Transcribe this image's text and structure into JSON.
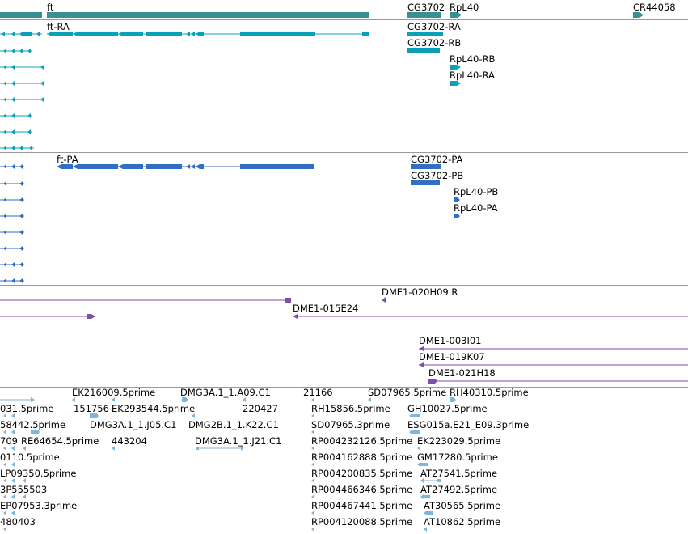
{
  "colors": {
    "gene": "#3a8f93",
    "transcript_a": "#0aa0b8",
    "transcript_b": "#2f6fc4",
    "clone": "#7c4fa8",
    "est": "#7fb6dc",
    "separator": "#9a9a9a"
  },
  "gene_track": {
    "labels": [
      "ft",
      "CG3702",
      "RpL40",
      "CR44058"
    ]
  },
  "transcript_track_a": {
    "labels": [
      "ft-RA",
      "CG3702-RA",
      "CG3702-RB",
      "RpL40-RB",
      "RpL40-RA"
    ]
  },
  "transcript_track_b": {
    "labels": [
      "ft-PA",
      "CG3702-PA",
      "CG3702-PB",
      "RpL40-PB",
      "RpL40-PA"
    ]
  },
  "clone_track_a": {
    "labels": [
      "DME1-020H09.R",
      "DME1-015E24"
    ]
  },
  "clone_track_b": {
    "labels": [
      "DME1-003I01",
      "DME1-019K07",
      "DME1-021H18"
    ]
  },
  "est_track": {
    "labels": [
      "EK216009.5prime",
      "DMG3A.1_1.A09.C1",
      "21166",
      "SD07965.5prime",
      "RH40310.5prime",
      "031.5prime",
      "151756",
      "EK293544.5prime",
      "220427",
      "RH15856.5prime",
      "GH10027.5prime",
      "58442.5prime",
      "DMG3A.1_1.J05.C1",
      "DMG2B.1_1.K22.C1",
      "SD07965.3prime",
      "ESG015a.E21_E09.3prime",
      "709",
      "RE64654.5prime",
      "443204",
      "DMG3A.1_1.J21.C1",
      "RP004232126.5prime",
      "EK223029.5prime",
      "0110.5prime",
      "RP004162888.5prime",
      "GM17280.5prime",
      "LP09350.5prime",
      "RP004200835.5prime",
      "AT27541.5prime",
      "3P555503",
      "RP004466346.5prime",
      "AT27492.5prime",
      "EP07953.3prime",
      "RP004467441.5prime",
      "AT30565.5prime",
      "480403",
      "RP004120088.5prime",
      "AT10862.5prime"
    ]
  }
}
